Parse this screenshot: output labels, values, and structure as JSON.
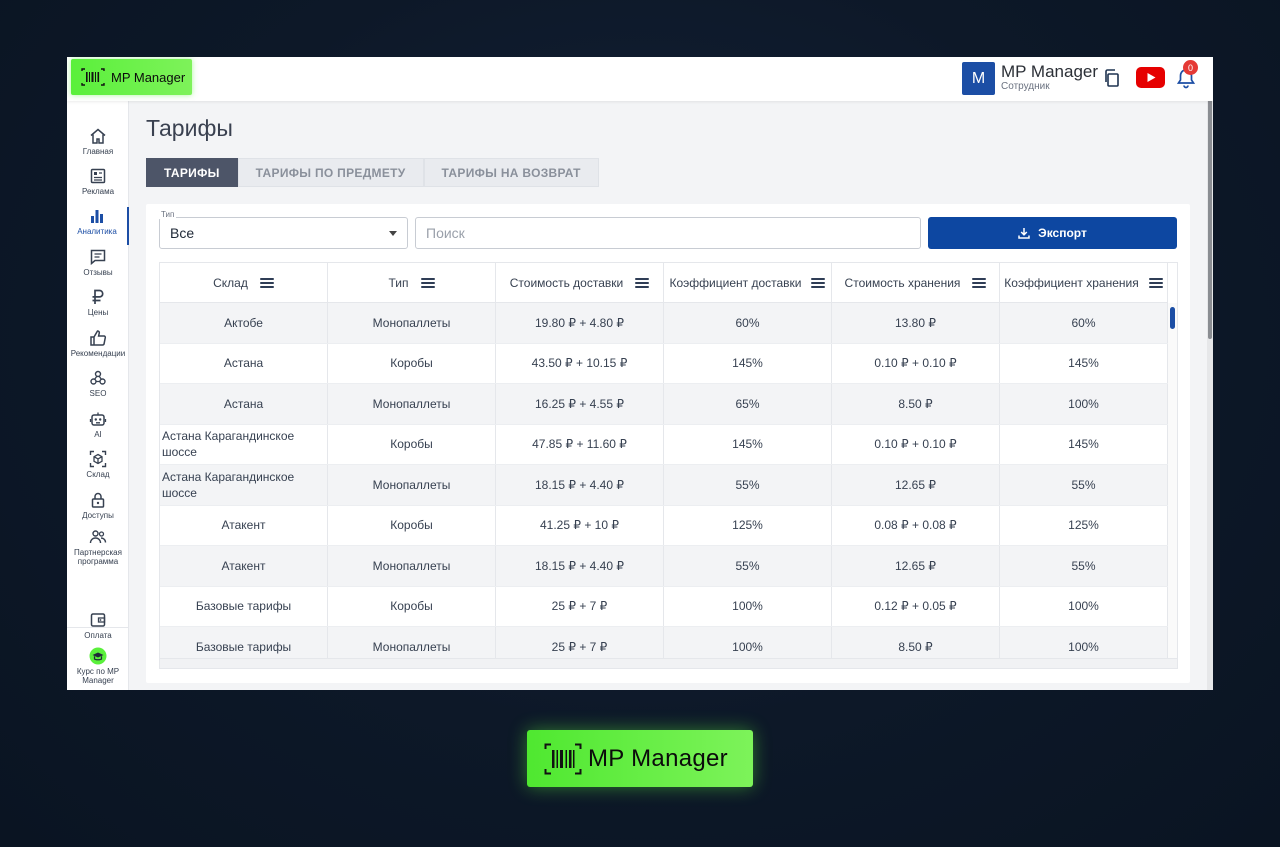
{
  "brand": {
    "name": "MP Manager"
  },
  "header": {
    "avatar_letter": "M",
    "user_name": "MP Manager",
    "user_role": "Сотрудник",
    "notifications_count": "0"
  },
  "sidebar": {
    "items": [
      {
        "label": "Главная",
        "icon": "home-icon"
      },
      {
        "label": "Реклама",
        "icon": "ads-icon"
      },
      {
        "label": "Аналитика",
        "icon": "analytics-icon"
      },
      {
        "label": "Отзывы",
        "icon": "reviews-icon"
      },
      {
        "label": "Цены",
        "icon": "ruble-icon"
      },
      {
        "label": "Рекомендации",
        "icon": "thumbs-up-icon"
      },
      {
        "label": "SEO",
        "icon": "seo-icon"
      },
      {
        "label": "AI",
        "icon": "robot-icon"
      },
      {
        "label": "Склад",
        "icon": "warehouse-icon"
      },
      {
        "label": "Доступы",
        "icon": "lock-icon"
      },
      {
        "label": "Партнерская программа",
        "icon": "partners-icon"
      }
    ],
    "bottom": [
      {
        "label": "Оплата",
        "icon": "wallet-icon"
      },
      {
        "label": "Курс по MP Manager",
        "icon": "course-icon"
      }
    ]
  },
  "page": {
    "title": "Тарифы",
    "tabs": [
      {
        "label": "ТАРИФЫ",
        "active": true
      },
      {
        "label": "ТАРИФЫ ПО ПРЕДМЕТУ",
        "active": false
      },
      {
        "label": "ТАРИФЫ НА ВОЗВРАТ",
        "active": false
      }
    ]
  },
  "filters": {
    "type_label": "Тип",
    "type_value": "Все",
    "search_placeholder": "Поиск",
    "export_label": "Экспорт"
  },
  "table": {
    "columns": [
      "Склад",
      "Тип",
      "Стоимость доставки",
      "Коэффициент доставки",
      "Стоимость хранения",
      "Коэффициент хранения"
    ],
    "rows": [
      [
        "Актобе",
        "Монопаллеты",
        "19.80 ₽ + 4.80 ₽",
        "60%",
        "13.80 ₽",
        "60%"
      ],
      [
        "Астана",
        "Коробы",
        "43.50 ₽ + 10.15 ₽",
        "145%",
        "0.10 ₽ + 0.10 ₽",
        "145%"
      ],
      [
        "Астана",
        "Монопаллеты",
        "16.25 ₽ + 4.55 ₽",
        "65%",
        "8.50 ₽",
        "100%"
      ],
      [
        "Астана Карагандинское шоссе",
        "Коробы",
        "47.85 ₽ + 11.60 ₽",
        "145%",
        "0.10 ₽ + 0.10 ₽",
        "145%"
      ],
      [
        "Астана Карагандинское шоссе",
        "Монопаллеты",
        "18.15 ₽ + 4.40 ₽",
        "55%",
        "12.65 ₽",
        "55%"
      ],
      [
        "Атакент",
        "Коробы",
        "41.25 ₽ + 10 ₽",
        "125%",
        "0.08 ₽ + 0.08 ₽",
        "125%"
      ],
      [
        "Атакент",
        "Монопаллеты",
        "18.15 ₽ + 4.40 ₽",
        "55%",
        "12.65 ₽",
        "55%"
      ],
      [
        "Базовые тарифы",
        "Коробы",
        "25 ₽ + 7 ₽",
        "100%",
        "0.12 ₽ + 0.05 ₽",
        "100%"
      ],
      [
        "Базовые тарифы",
        "Монопаллеты",
        "25 ₽ + 7 ₽",
        "100%",
        "8.50 ₽",
        "100%"
      ]
    ]
  },
  "colors": {
    "accent": "#0d47a1",
    "brand_green": "#5af03b",
    "tab_active": "#4d5568",
    "badge": "#e53935"
  }
}
